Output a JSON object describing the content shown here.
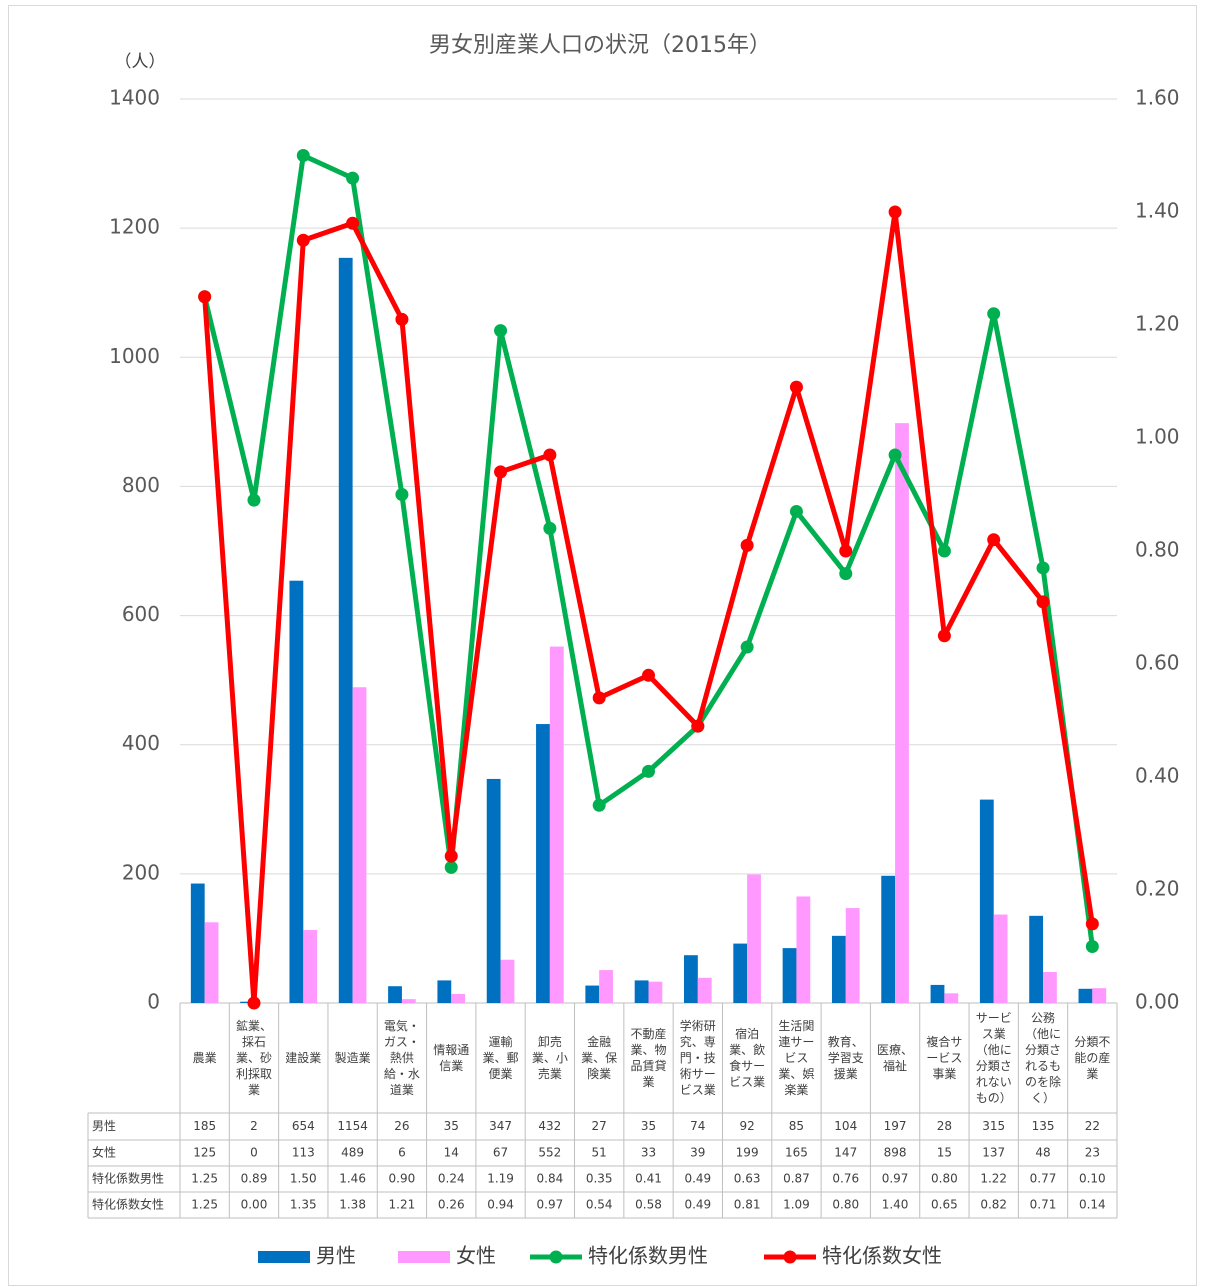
{
  "chart_data": {
    "type": "bar",
    "title": "男女別産業人口の状況（2015年）",
    "y_label": "（人）",
    "categories": [
      "農業",
      "鉱業、採石業、砂利採取業",
      "建設業",
      "製造業",
      "電気・ガス・熱供給・水道業",
      "情報通信業",
      "運輸業、郵便業",
      "卸売業、小売業",
      "金融業、保険業",
      "不動産業、物品賃貸業",
      "学術研究、専門・技術サービス業",
      "宿泊業、飲食サービス業",
      "生活関連サービス業、娯楽業",
      "教育、学習支援業",
      "医療、福祉",
      "複合サービス事業",
      "サービス業（他に分類されないもの）",
      "公務（他に分類されるものを除く）",
      "分類不能の産業"
    ],
    "series": [
      {
        "name": "男性",
        "type": "bar",
        "color": "#0070c0",
        "values": [
          185,
          2,
          654,
          1154,
          26,
          35,
          347,
          432,
          27,
          35,
          74,
          92,
          85,
          104,
          197,
          28,
          315,
          135,
          22
        ]
      },
      {
        "name": "女性",
        "type": "bar",
        "color": "#ff99ff",
        "values": [
          125,
          0,
          113,
          489,
          6,
          14,
          67,
          552,
          51,
          33,
          39,
          199,
          165,
          147,
          898,
          15,
          137,
          48,
          23
        ]
      },
      {
        "name": "特化係数男性",
        "type": "line",
        "axis": "y2",
        "color": "#00b050",
        "values": [
          1.25,
          0.89,
          1.5,
          1.46,
          0.9,
          0.24,
          1.19,
          0.84,
          0.35,
          0.41,
          0.49,
          0.63,
          0.87,
          0.76,
          0.97,
          0.8,
          1.22,
          0.77,
          0.1
        ],
        "value_labels": [
          "1.25",
          "0.89",
          "1.50",
          "1.46",
          "0.90",
          "0.24",
          "1.19",
          "0.84",
          "0.35",
          "0.41",
          "0.49",
          "0.63",
          "0.87",
          "0.76",
          "0.97",
          "0.80",
          "1.22",
          "0.77",
          "0.10"
        ]
      },
      {
        "name": "特化係数女性",
        "type": "line",
        "axis": "y2",
        "color": "#ff0000",
        "values": [
          1.25,
          0,
          1.35,
          1.38,
          1.21,
          0.26,
          0.94,
          0.97,
          0.54,
          0.58,
          0.49,
          0.81,
          1.09,
          0.8,
          1.4,
          0.65,
          0.82,
          0.71,
          0.14
        ],
        "value_labels": [
          "1.25",
          "0.00",
          "1.35",
          "1.38",
          "1.21",
          "0.26",
          "0.94",
          "0.97",
          "0.54",
          "0.58",
          "0.49",
          "0.81",
          "1.09",
          "0.80",
          "1.40",
          "0.65",
          "0.82",
          "0.71",
          "0.14"
        ]
      }
    ],
    "ylim": [
      0,
      1400
    ],
    "yticks": [
      0,
      200,
      400,
      600,
      800,
      1000,
      1200,
      1400
    ],
    "y2lim": [
      0,
      1.6
    ],
    "y2ticks": [
      {
        "value": 0,
        "label": "0.00"
      },
      {
        "value": 0.2,
        "label": "0.20"
      },
      {
        "value": 0.4,
        "label": "0.40"
      },
      {
        "value": 0.6,
        "label": "0.60"
      },
      {
        "value": 0.8,
        "label": "0.80"
      },
      {
        "value": 1,
        "label": "1.00"
      },
      {
        "value": 1.2,
        "label": "1.20"
      },
      {
        "value": 1.4,
        "label": "1.40"
      },
      {
        "value": 1.6,
        "label": "1.60"
      }
    ],
    "grid": true,
    "legend": "bottom",
    "data_table": true
  }
}
